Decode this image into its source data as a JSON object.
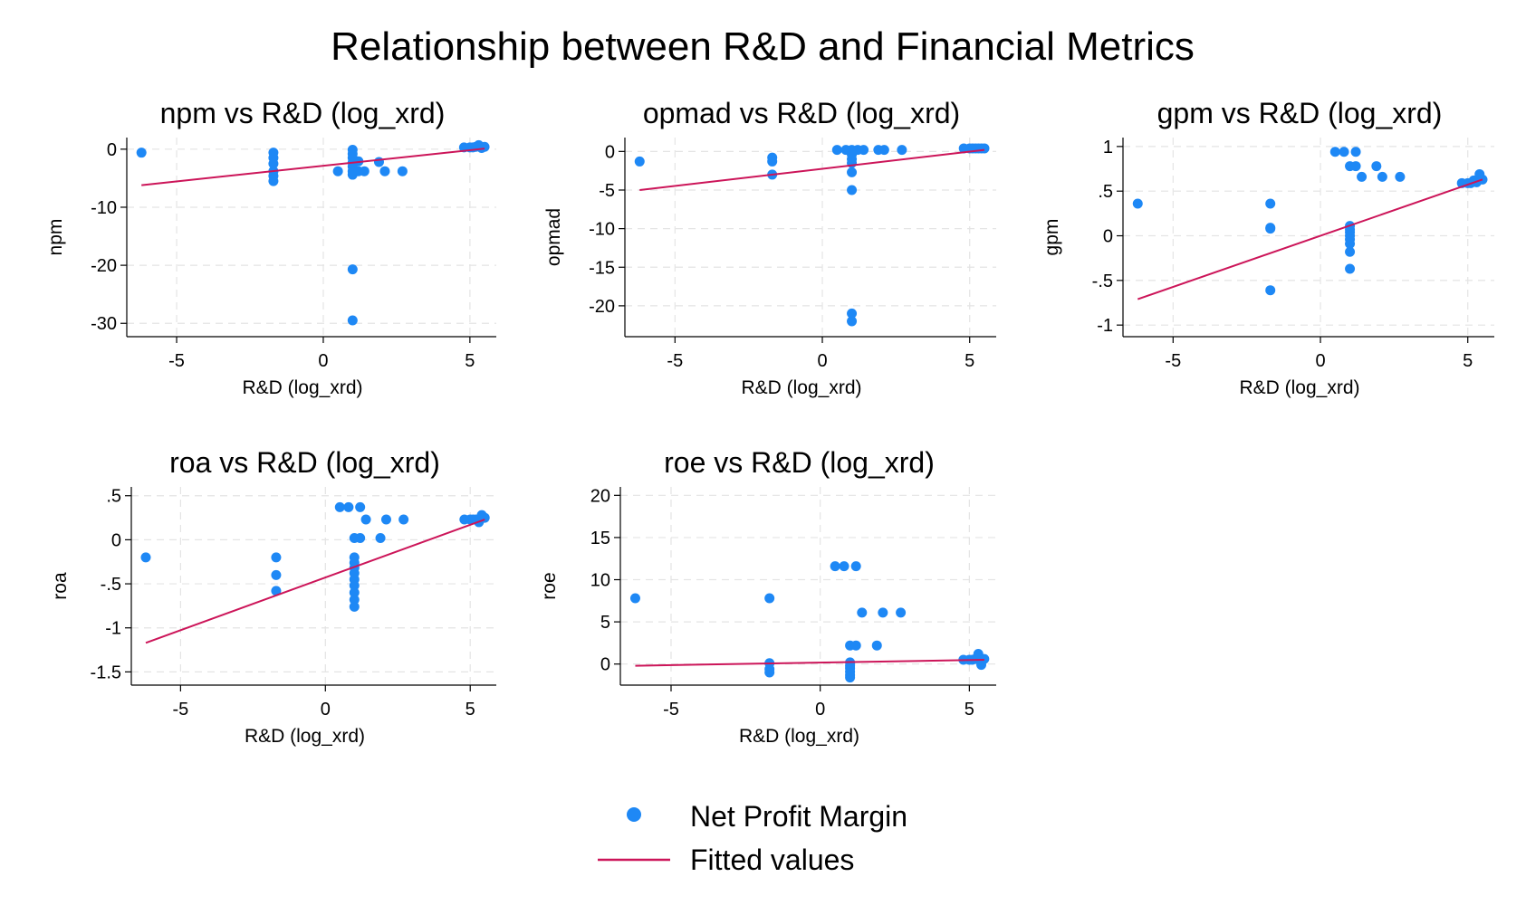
{
  "title": "Relationship between R&D and Financial Metrics",
  "legend": {
    "position": "bottom-center",
    "items": [
      {
        "label": "Net Profit Margin",
        "kind": "marker"
      },
      {
        "label": "Fitted values",
        "kind": "line"
      }
    ]
  },
  "colors": {
    "marker": "#1e88f5",
    "fit_line": "#cc1559",
    "grid": "#e4e4e4",
    "axis": "#000000"
  },
  "chart_data": [
    {
      "type": "scatter",
      "title": "npm vs R&D (log_xrd)",
      "xlabel": "R&D (log_xrd)",
      "ylabel": "npm",
      "xlim": [
        -6.7,
        5.9
      ],
      "ylim": [
        -32.3,
        2.0
      ],
      "xticks": [
        -5,
        0,
        5
      ],
      "xtick_labels": [
        "-5",
        "0",
        "5"
      ],
      "yticks": [
        0,
        -10,
        -20,
        -30
      ],
      "ytick_labels": [
        "0",
        "-10",
        "-20",
        "-30"
      ],
      "grid": true,
      "points": [
        [
          -6.2,
          -0.6
        ],
        [
          -1.7,
          -0.6
        ],
        [
          -1.7,
          -1.5
        ],
        [
          -1.7,
          -2.5
        ],
        [
          -1.7,
          -3.8
        ],
        [
          -1.7,
          -4.6
        ],
        [
          -1.7,
          -5.5
        ],
        [
          0.5,
          -3.8
        ],
        [
          1.0,
          -0.1
        ],
        [
          1.0,
          -0.8
        ],
        [
          1.0,
          -1.5
        ],
        [
          1.0,
          -2.3
        ],
        [
          1.0,
          -3.0
        ],
        [
          1.0,
          -3.8
        ],
        [
          1.0,
          -4.4
        ],
        [
          1.0,
          -20.7
        ],
        [
          1.0,
          -29.5
        ],
        [
          1.2,
          -2.1
        ],
        [
          1.2,
          -3.8
        ],
        [
          1.4,
          -3.8
        ],
        [
          1.9,
          -2.2
        ],
        [
          2.1,
          -3.8
        ],
        [
          2.7,
          -3.8
        ],
        [
          4.8,
          0.3
        ],
        [
          5.0,
          0.3
        ],
        [
          5.1,
          0.3
        ],
        [
          5.2,
          0.4
        ],
        [
          5.3,
          0.7
        ],
        [
          5.4,
          0.2
        ],
        [
          5.5,
          0.4
        ]
      ],
      "fit": {
        "x": [
          -6.2,
          5.5
        ],
        "y": [
          -6.2,
          0.1
        ]
      }
    },
    {
      "type": "scatter",
      "title": "opmad vs R&D (log_xrd)",
      "xlabel": "R&D (log_xrd)",
      "ylabel": "opmad",
      "xlim": [
        -6.7,
        5.9
      ],
      "ylim": [
        -24.0,
        1.8
      ],
      "xticks": [
        -5,
        0,
        5
      ],
      "xtick_labels": [
        "-5",
        "0",
        "5"
      ],
      "yticks": [
        0,
        -5,
        -10,
        -15,
        -20
      ],
      "ytick_labels": [
        "0",
        "-5",
        "-10",
        "-15",
        "-20"
      ],
      "grid": true,
      "points": [
        [
          -6.2,
          -1.3
        ],
        [
          -1.7,
          -0.8
        ],
        [
          -1.7,
          -1.3
        ],
        [
          -1.7,
          -3.0
        ],
        [
          0.5,
          0.2
        ],
        [
          0.8,
          0.2
        ],
        [
          1.0,
          0.2
        ],
        [
          1.0,
          -0.4
        ],
        [
          1.0,
          -1.0
        ],
        [
          1.0,
          -1.5
        ],
        [
          1.0,
          -2.7
        ],
        [
          1.0,
          -5.0
        ],
        [
          1.0,
          -21.0
        ],
        [
          1.0,
          -22.0
        ],
        [
          1.2,
          0.2
        ],
        [
          1.4,
          0.2
        ],
        [
          1.9,
          0.2
        ],
        [
          2.1,
          0.2
        ],
        [
          2.7,
          0.2
        ],
        [
          4.8,
          0.4
        ],
        [
          5.0,
          0.4
        ],
        [
          5.1,
          0.4
        ],
        [
          5.2,
          0.4
        ],
        [
          5.3,
          0.4
        ],
        [
          5.4,
          0.4
        ],
        [
          5.5,
          0.4
        ]
      ],
      "fit": {
        "x": [
          -6.2,
          5.5
        ],
        "y": [
          -5.0,
          0.2
        ]
      }
    },
    {
      "type": "scatter",
      "title": "gpm vs R&D (log_xrd)",
      "xlabel": "R&D (log_xrd)",
      "ylabel": "gpm",
      "xlim": [
        -6.7,
        5.9
      ],
      "ylim": [
        -1.13,
        1.1
      ],
      "xticks": [
        -5,
        0,
        5
      ],
      "xtick_labels": [
        "-5",
        "0",
        "5"
      ],
      "yticks": [
        1,
        0.5,
        0,
        -0.5,
        -1
      ],
      "ytick_labels": [
        "1",
        ".5",
        "0",
        "-.5",
        "-1"
      ],
      "grid": true,
      "points": [
        [
          -6.2,
          0.36
        ],
        [
          -1.7,
          0.36
        ],
        [
          -1.7,
          0.09
        ],
        [
          -1.7,
          0.08
        ],
        [
          -1.7,
          -0.61
        ],
        [
          0.5,
          0.94
        ],
        [
          0.8,
          0.94
        ],
        [
          1.2,
          0.94
        ],
        [
          1.0,
          0.78
        ],
        [
          1.2,
          0.78
        ],
        [
          1.4,
          0.66
        ],
        [
          1.9,
          0.78
        ],
        [
          2.1,
          0.66
        ],
        [
          2.7,
          0.66
        ],
        [
          1.0,
          0.11
        ],
        [
          1.0,
          0.07
        ],
        [
          1.0,
          0.04
        ],
        [
          1.0,
          0.0
        ],
        [
          1.0,
          -0.04
        ],
        [
          1.0,
          -0.09
        ],
        [
          1.0,
          -0.18
        ],
        [
          1.0,
          -0.37
        ],
        [
          4.8,
          0.59
        ],
        [
          5.0,
          0.59
        ],
        [
          5.1,
          0.59
        ],
        [
          5.2,
          0.62
        ],
        [
          5.3,
          0.6
        ],
        [
          5.4,
          0.69
        ],
        [
          5.5,
          0.63
        ]
      ],
      "fit": {
        "x": [
          -6.2,
          5.5
        ],
        "y": [
          -0.71,
          0.63
        ]
      }
    },
    {
      "type": "scatter",
      "title": "roa vs R&D (log_xrd)",
      "xlabel": "R&D (log_xrd)",
      "ylabel": "roa",
      "xlim": [
        -6.7,
        5.9
      ],
      "ylim": [
        -1.65,
        0.6
      ],
      "xticks": [
        -5,
        0,
        5
      ],
      "xtick_labels": [
        "-5",
        "0",
        "5"
      ],
      "yticks": [
        0.5,
        0,
        -0.5,
        -1,
        -1.5
      ],
      "ytick_labels": [
        ".5",
        "0",
        "-.5",
        "-1",
        "-1.5"
      ],
      "grid": true,
      "points": [
        [
          -6.2,
          -0.2
        ],
        [
          -1.7,
          -0.2
        ],
        [
          -1.7,
          -0.4
        ],
        [
          -1.7,
          -0.58
        ],
        [
          0.5,
          0.37
        ],
        [
          0.8,
          0.37
        ],
        [
          1.2,
          0.37
        ],
        [
          1.0,
          0.02
        ],
        [
          1.2,
          0.02
        ],
        [
          1.4,
          0.23
        ],
        [
          1.9,
          0.02
        ],
        [
          2.1,
          0.23
        ],
        [
          2.7,
          0.23
        ],
        [
          1.0,
          -0.2
        ],
        [
          1.0,
          -0.26
        ],
        [
          1.0,
          -0.32
        ],
        [
          1.0,
          -0.38
        ],
        [
          1.0,
          -0.45
        ],
        [
          1.0,
          -0.52
        ],
        [
          1.0,
          -0.6
        ],
        [
          1.0,
          -0.68
        ],
        [
          1.0,
          -0.76
        ],
        [
          4.8,
          0.23
        ],
        [
          5.0,
          0.23
        ],
        [
          5.1,
          0.23
        ],
        [
          5.2,
          0.23
        ],
        [
          5.3,
          0.2
        ],
        [
          5.4,
          0.28
        ],
        [
          5.5,
          0.25
        ]
      ],
      "fit": {
        "x": [
          -6.2,
          5.5
        ],
        "y": [
          -1.17,
          0.23
        ]
      }
    },
    {
      "type": "scatter",
      "title": "roe vs R&D (log_xrd)",
      "xlabel": "R&D (log_xrd)",
      "ylabel": "roe",
      "xlim": [
        -6.7,
        5.9
      ],
      "ylim": [
        -2.5,
        21.0
      ],
      "xticks": [
        -5,
        0,
        5
      ],
      "xtick_labels": [
        "-5",
        "0",
        "5"
      ],
      "yticks": [
        20,
        15,
        10,
        5,
        0
      ],
      "ytick_labels": [
        "20",
        "15",
        "10",
        "5",
        "0"
      ],
      "grid": true,
      "points": [
        [
          -6.2,
          7.8
        ],
        [
          -1.7,
          7.8
        ],
        [
          -1.7,
          0.1
        ],
        [
          -1.7,
          -0.6
        ],
        [
          -1.7,
          -1.0
        ],
        [
          0.5,
          11.6
        ],
        [
          0.8,
          11.6
        ],
        [
          1.2,
          11.6
        ],
        [
          1.4,
          6.1
        ],
        [
          1.9,
          2.2
        ],
        [
          2.1,
          6.1
        ],
        [
          2.7,
          6.1
        ],
        [
          1.0,
          2.2
        ],
        [
          1.2,
          2.2
        ],
        [
          1.0,
          0.2
        ],
        [
          1.0,
          -0.2
        ],
        [
          1.0,
          -0.5
        ],
        [
          1.0,
          -0.9
        ],
        [
          1.0,
          -1.3
        ],
        [
          1.0,
          -1.6
        ],
        [
          4.8,
          0.5
        ],
        [
          5.0,
          0.5
        ],
        [
          5.1,
          0.5
        ],
        [
          5.2,
          0.6
        ],
        [
          5.3,
          1.2
        ],
        [
          5.4,
          -0.1
        ],
        [
          5.5,
          0.6
        ]
      ],
      "fit": {
        "x": [
          -6.2,
          5.5
        ],
        "y": [
          -0.2,
          0.5
        ]
      }
    }
  ]
}
